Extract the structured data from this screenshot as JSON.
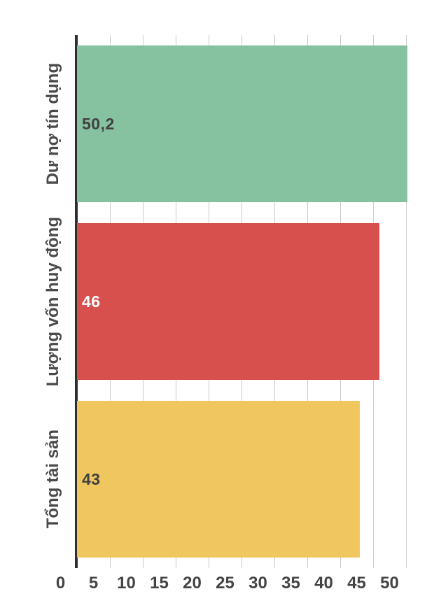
{
  "chart_data": {
    "type": "bar",
    "orientation": "horizontal",
    "title": "",
    "xlabel": "",
    "ylabel": "",
    "grid": true,
    "legend": "none",
    "categories": [
      "Dư nợ tín dụng",
      "Lượng vốn huy động",
      "Tổng tài sản"
    ],
    "values": [
      50.2,
      46,
      43
    ],
    "value_labels": [
      "50,2",
      "46",
      "43"
    ],
    "bar_colors": [
      "#87C2A0",
      "#D8504D",
      "#F0C75F"
    ],
    "value_label_colors": [
      "#414141",
      "#FFFFFF",
      "#414141"
    ],
    "x_ticks": [
      0,
      5,
      10,
      15,
      20,
      25,
      30,
      35,
      40,
      45,
      50
    ],
    "x_tick_labels": [
      "0",
      "5",
      "10",
      "15",
      "20",
      "25",
      "30",
      "35",
      "40",
      "45",
      "50"
    ],
    "xlim": [
      0,
      55
    ],
    "colors": {
      "background": "#FFFFFF",
      "grid_color": "#CCCCCC",
      "axis_color": "#2E2E2E",
      "tick_label_color": "#444444",
      "category_label_color": "#4A4A4A"
    }
  }
}
